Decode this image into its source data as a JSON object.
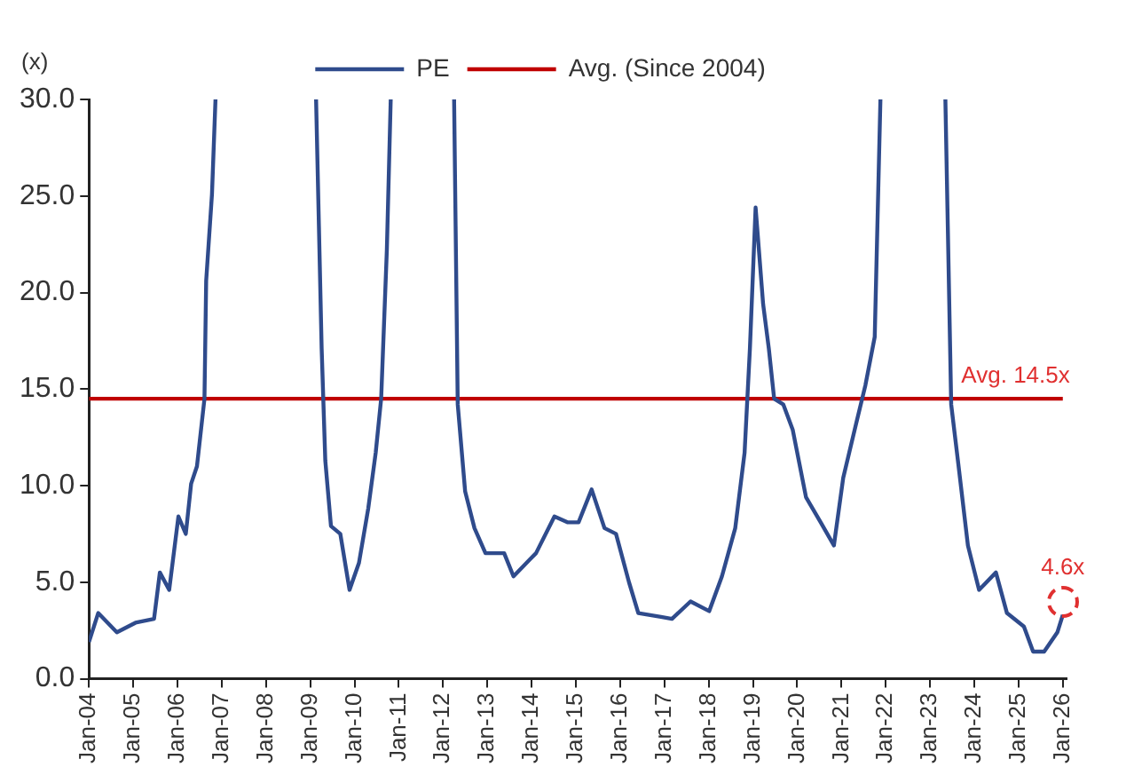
{
  "chart_data": {
    "type": "line",
    "ylabel": "(x)",
    "legend": "top",
    "grid": false,
    "marker": "none",
    "line_style": "solid",
    "xlim": [
      "2004-01-01",
      "2026-02-01"
    ],
    "xticks": [
      {
        "value": "2004-01",
        "label": "Jan-04"
      },
      {
        "value": "2005-01",
        "label": "Jan-05"
      },
      {
        "value": "2006-01",
        "label": "Jan-06"
      },
      {
        "value": "2007-01",
        "label": "Jan-07"
      },
      {
        "value": "2008-01",
        "label": "Jan-08"
      },
      {
        "value": "2009-01",
        "label": "Jan-09"
      },
      {
        "value": "2010-01",
        "label": "Jan-10"
      },
      {
        "value": "2011-01",
        "label": "Jan-11"
      },
      {
        "value": "2012-01",
        "label": "Jan-12"
      },
      {
        "value": "2013-01",
        "label": "Jan-13"
      },
      {
        "value": "2014-01",
        "label": "Jan-14"
      },
      {
        "value": "2015-01",
        "label": "Jan-15"
      },
      {
        "value": "2016-01",
        "label": "Jan-16"
      },
      {
        "value": "2017-01",
        "label": "Jan-17"
      },
      {
        "value": "2018-01",
        "label": "Jan-18"
      },
      {
        "value": "2019-01",
        "label": "Jan-19"
      },
      {
        "value": "2020-01",
        "label": "Jan-20"
      },
      {
        "value": "2021-01",
        "label": "Jan-21"
      },
      {
        "value": "2022-01",
        "label": "Jan-22"
      },
      {
        "value": "2023-01",
        "label": "Jan-23"
      },
      {
        "value": "2024-01",
        "label": "Jan-24"
      },
      {
        "value": "2025-01",
        "label": "Jan-25"
      },
      {
        "value": "2026-01",
        "label": "Jan-26"
      }
    ],
    "ylim": [
      0,
      30
    ],
    "yticks": [
      {
        "value": 0,
        "label": "0.0"
      },
      {
        "value": 5,
        "label": "5.0"
      },
      {
        "value": 10,
        "label": "10.0"
      },
      {
        "value": 15,
        "label": "15.0"
      },
      {
        "value": 20,
        "label": "20.0"
      },
      {
        "value": 25,
        "label": "25.0"
      },
      {
        "value": 30,
        "label": "30.0"
      }
    ],
    "series": [
      {
        "name": "PE",
        "color": "#2f4b8c",
        "x": [
          "2004-01-01",
          "2004-03-17",
          "2004-08-18",
          "2005-01-19",
          "2005-06-21",
          "2005-08-08",
          "2005-10-24",
          "2006-01-08",
          "2006-03-10",
          "2006-04-23",
          "2006-06-10",
          "2006-08-11",
          "2006-08-25",
          "2006-10-12",
          "2006-11-10",
          "2008-01-01",
          "2009-02-17",
          "2009-04-04",
          "2009-05-04",
          "2009-06-20",
          "2009-09-05",
          "2009-11-20",
          "2010-02-06",
          "2010-04-23",
          "2010-06-24",
          "2010-08-08",
          "2010-09-24",
          "2010-10-26",
          "2011-06-01",
          "2012-04-01",
          "2012-05-01",
          "2012-07-01",
          "2012-09-16",
          "2012-12-16",
          "2013-05-19",
          "2013-08-04",
          "2013-12-20",
          "2014-02-06",
          "2014-07-08",
          "2014-10-23",
          "2015-01-23",
          "2015-05-11",
          "2015-08-25",
          "2015-11-28",
          "2016-03-14",
          "2016-05-30",
          "2016-12-03",
          "2017-03-04",
          "2017-08-04",
          "2018-01-05",
          "2018-04-20",
          "2018-08-08",
          "2018-10-24",
          "2018-12-07",
          "2019-01-23",
          "2019-03-26",
          "2019-05-12",
          "2019-06-25",
          "2019-09-09",
          "2019-11-25",
          "2020-03-14",
          "2020-07-13",
          "2020-10-30",
          "2021-01-15",
          "2021-05-01",
          "2021-07-17",
          "2021-10-02",
          "2021-11-18",
          "2022-10-01",
          "2023-05-08",
          "2023-06-25",
          "2023-08-25",
          "2023-11-10",
          "2024-02-10",
          "2024-06-28",
          "2024-09-27",
          "2025-02-14",
          "2025-05-01",
          "2025-07-31",
          "2025-11-17",
          "2026-01-01"
        ],
        "values": [
          1.9,
          3.4,
          2.4,
          2.9,
          3.1,
          5.5,
          4.6,
          8.4,
          7.5,
          10.1,
          11.0,
          14.5,
          20.6,
          25.1,
          30,
          null,
          30,
          17.1,
          11.3,
          7.9,
          7.5,
          4.6,
          6.0,
          8.8,
          11.7,
          14.5,
          22.2,
          30,
          null,
          30,
          14.2,
          9.7,
          7.8,
          6.5,
          6.5,
          5.3,
          6.2,
          6.5,
          8.4,
          8.1,
          8.1,
          9.8,
          7.8,
          7.5,
          5.0,
          3.4,
          3.2,
          3.1,
          4.0,
          3.5,
          5.3,
          7.8,
          11.7,
          17.1,
          24.4,
          19.4,
          17.1,
          14.5,
          14.2,
          12.9,
          9.4,
          8.1,
          6.9,
          10.4,
          13.2,
          15.2,
          17.7,
          30,
          null,
          30,
          14.2,
          11.0,
          6.9,
          4.6,
          5.5,
          3.4,
          2.7,
          1.4,
          1.4,
          2.4,
          3.3
        ]
      },
      {
        "name": "Avg. (Since 2004)",
        "color": "#c00000",
        "x": [
          "2004-01-01",
          "2026-01-01"
        ],
        "values": [
          14.5,
          14.5
        ]
      }
    ],
    "annotations": [
      {
        "text": "Avg. 14.5x",
        "x": "2026-01-01",
        "y": 14.5
      },
      "4.6x"
    ]
  }
}
